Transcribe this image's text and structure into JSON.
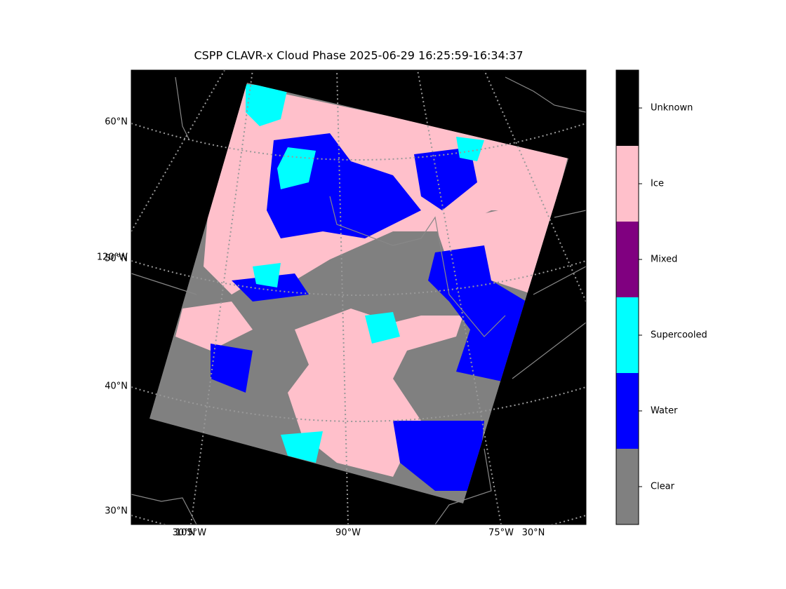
{
  "header": {
    "title": "CSPP CLAVR-x Cloud Phase 2025-06-29 16:25:59-16:34:37"
  },
  "map": {
    "left_labels": [
      "60°N",
      "120°W",
      "50°N",
      "40°N",
      "30°N"
    ],
    "bottom_labels": [
      "30°N",
      "105°W",
      "90°W",
      "75°W",
      "30°N"
    ]
  },
  "legend": [
    {
      "label": "Clear",
      "color": "#808080"
    },
    {
      "label": "Water",
      "color": "#0000ff"
    },
    {
      "label": "Supercooled",
      "color": "#00ffff"
    },
    {
      "label": "Mixed",
      "color": "#800080"
    },
    {
      "label": "Ice",
      "color": "#ffc0cb"
    },
    {
      "label": "Unknown",
      "color": "#000000"
    }
  ]
}
